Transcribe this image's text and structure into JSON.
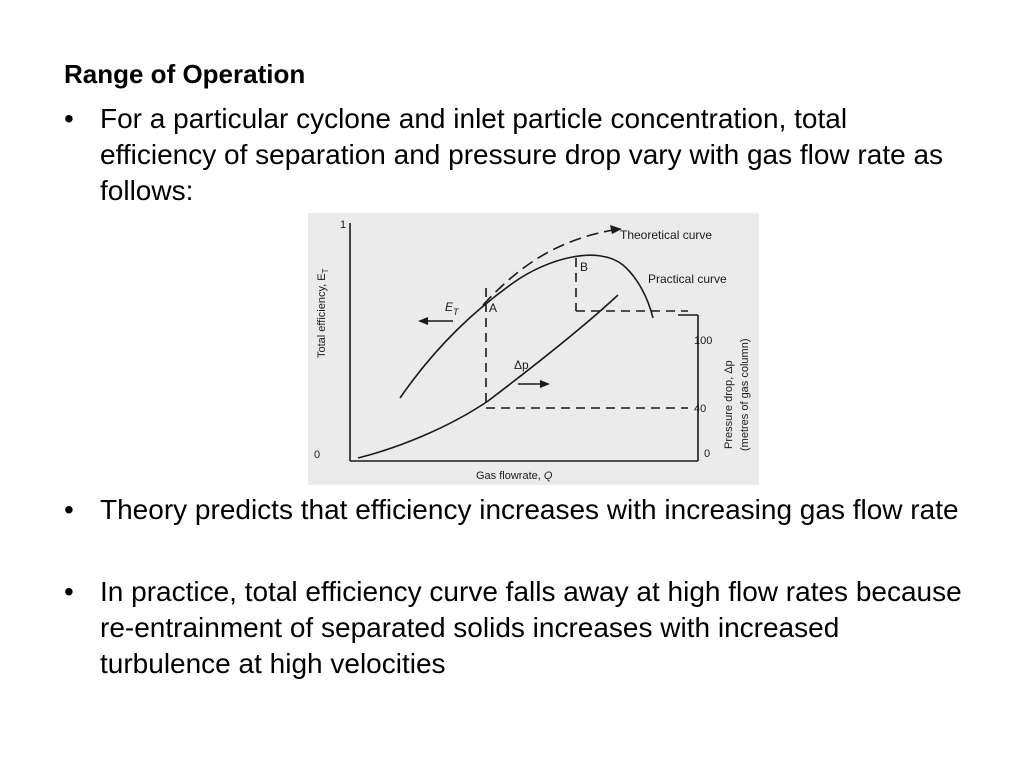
{
  "slide": {
    "heading": "Range of Operation",
    "bullets": [
      "For a particular cyclone and inlet particle concentration, total efficiency of separation and pressure drop vary with gas flow rate as follows:",
      "Theory predicts that efficiency increases with increasing gas flow rate",
      "In practice, total efficiency curve falls away at high flow rates because re-entrainment of separated solids increases with increased turbulence at high velocities"
    ],
    "bullet_symbol": "•"
  },
  "figure": {
    "curve_labels": {
      "theoretical": "Theoretical curve",
      "practical": "Practical curve"
    },
    "point_labels": {
      "a": "A",
      "b": "B"
    },
    "efficiency_symbol": "E",
    "efficiency_subscript": "T",
    "pressure_symbol": "Δp",
    "left_axis": {
      "label": "Total efficiency, E",
      "label_subscript": "T",
      "top_tick": "1",
      "bottom_tick": "0"
    },
    "right_axis": {
      "label_line1": "Pressure drop, Δp",
      "label_line2": "(metres of gas column)",
      "tick_100": "100",
      "tick_40": "40",
      "tick_0": "0"
    },
    "x_axis": {
      "label": "Gas flowrate, ",
      "label_symbol": "Q"
    },
    "colors": {
      "background": "#ebebeb",
      "ink": "#1a1a1a"
    }
  }
}
